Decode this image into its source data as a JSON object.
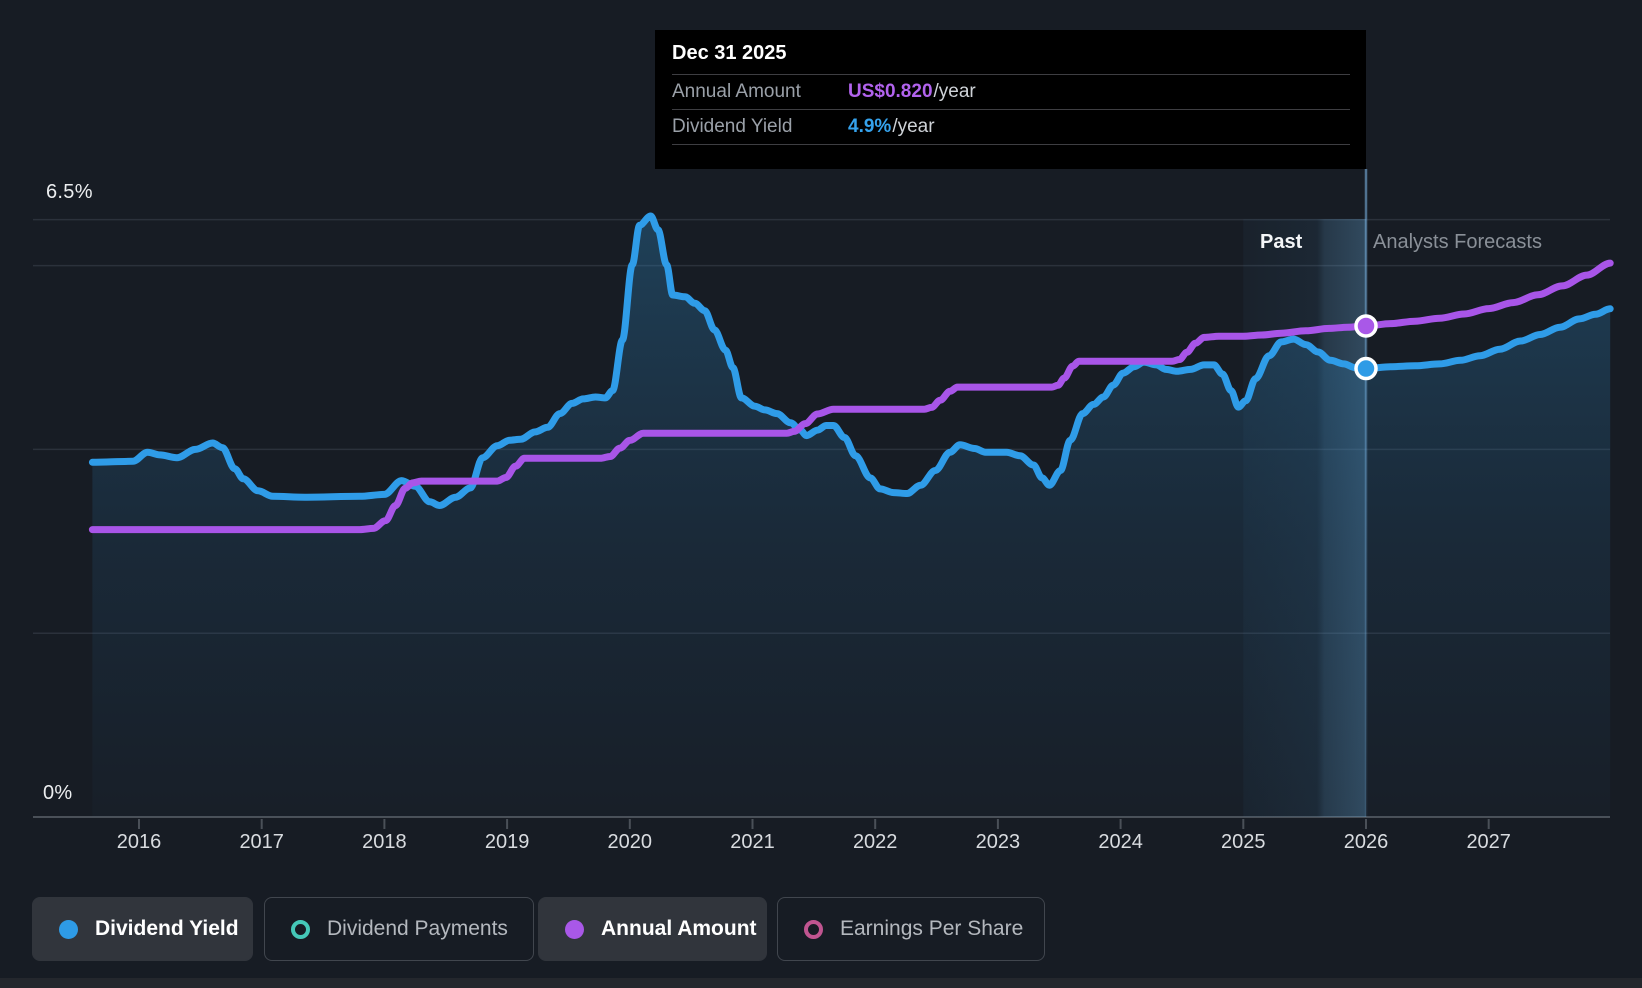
{
  "tooltip": {
    "title": "Dec 31 2025",
    "rows": [
      {
        "label": "Annual Amount",
        "value": "US$0.820",
        "suffix": "/year",
        "color": "#b263ee"
      },
      {
        "label": "Dividend Yield",
        "value": "4.9%",
        "suffix": "/year",
        "color": "#35a2ec"
      }
    ]
  },
  "header": {
    "past_label": "Past",
    "forecast_label": "Analysts Forecasts"
  },
  "y_axis": {
    "top_label": "6.5%",
    "bottom_label": "0%"
  },
  "x_axis": {
    "years": [
      "2016",
      "2017",
      "2018",
      "2019",
      "2020",
      "2021",
      "2022",
      "2023",
      "2024",
      "2025",
      "2026",
      "2027"
    ]
  },
  "legend": {
    "items": [
      {
        "label": "Dividend Yield",
        "color": "#2e9be6",
        "marker": "dot",
        "active": true
      },
      {
        "label": "Dividend Payments",
        "color": "#45c8b8",
        "marker": "ring",
        "active": false
      },
      {
        "label": "Annual Amount",
        "color": "#a958e8",
        "marker": "dot",
        "active": true
      },
      {
        "label": "Earnings Per Share",
        "color": "#c05590",
        "marker": "ring",
        "active": false
      }
    ]
  },
  "chart_data": {
    "type": "line",
    "title": "Dividend yield and annual dividend amount, past and analysts forecasts",
    "x_range": [
      2015.6,
      2028.0
    ],
    "grid": true,
    "y_gridlines_pct": [
      6.5,
      6.0,
      4.0,
      2.0,
      0.0
    ],
    "y_axis_pct_range": [
      0,
      6.5
    ],
    "divider_year": 2026,
    "highlight_band_years": [
      2025,
      2026
    ],
    "series": [
      {
        "name": "Dividend Yield",
        "unit": "%",
        "color": "#2f9ce8",
        "area": true,
        "points": [
          [
            2015.62,
            3.86
          ],
          [
            2015.95,
            3.87
          ],
          [
            2016.07,
            3.97
          ],
          [
            2016.17,
            3.94
          ],
          [
            2016.31,
            3.91
          ],
          [
            2016.46,
            4.0
          ],
          [
            2016.6,
            4.07
          ],
          [
            2016.68,
            4.02
          ],
          [
            2016.78,
            3.79
          ],
          [
            2016.85,
            3.68
          ],
          [
            2016.97,
            3.55
          ],
          [
            2017.09,
            3.49
          ],
          [
            2017.35,
            3.48
          ],
          [
            2017.8,
            3.49
          ],
          [
            2018.0,
            3.51
          ],
          [
            2018.14,
            3.66
          ],
          [
            2018.25,
            3.6
          ],
          [
            2018.37,
            3.43
          ],
          [
            2018.45,
            3.39
          ],
          [
            2018.58,
            3.48
          ],
          [
            2018.7,
            3.58
          ],
          [
            2018.8,
            3.91
          ],
          [
            2018.92,
            4.04
          ],
          [
            2019.02,
            4.1
          ],
          [
            2019.11,
            4.11
          ],
          [
            2019.23,
            4.19
          ],
          [
            2019.33,
            4.24
          ],
          [
            2019.43,
            4.39
          ],
          [
            2019.53,
            4.5
          ],
          [
            2019.62,
            4.55
          ],
          [
            2019.72,
            4.57
          ],
          [
            2019.8,
            4.56
          ],
          [
            2019.86,
            4.64
          ],
          [
            2019.94,
            5.19
          ],
          [
            2020.02,
            6.01
          ],
          [
            2020.08,
            6.44
          ],
          [
            2020.17,
            6.54
          ],
          [
            2020.23,
            6.39
          ],
          [
            2020.3,
            6.01
          ],
          [
            2020.35,
            5.68
          ],
          [
            2020.45,
            5.66
          ],
          [
            2020.53,
            5.59
          ],
          [
            2020.61,
            5.51
          ],
          [
            2020.69,
            5.3
          ],
          [
            2020.78,
            5.08
          ],
          [
            2020.84,
            4.89
          ],
          [
            2020.91,
            4.56
          ],
          [
            2021.02,
            4.47
          ],
          [
            2021.1,
            4.43
          ],
          [
            2021.2,
            4.39
          ],
          [
            2021.31,
            4.29
          ],
          [
            2021.39,
            4.21
          ],
          [
            2021.44,
            4.15
          ],
          [
            2021.53,
            4.21
          ],
          [
            2021.6,
            4.26
          ],
          [
            2021.66,
            4.26
          ],
          [
            2021.75,
            4.13
          ],
          [
            2021.84,
            3.93
          ],
          [
            2021.96,
            3.69
          ],
          [
            2022.04,
            3.57
          ],
          [
            2022.15,
            3.53
          ],
          [
            2022.26,
            3.52
          ],
          [
            2022.37,
            3.61
          ],
          [
            2022.49,
            3.77
          ],
          [
            2022.61,
            3.97
          ],
          [
            2022.69,
            4.05
          ],
          [
            2022.81,
            4.01
          ],
          [
            2022.9,
            3.97
          ],
          [
            2023.07,
            3.97
          ],
          [
            2023.18,
            3.93
          ],
          [
            2023.29,
            3.83
          ],
          [
            2023.36,
            3.69
          ],
          [
            2023.42,
            3.61
          ],
          [
            2023.51,
            3.77
          ],
          [
            2023.59,
            4.1
          ],
          [
            2023.69,
            4.39
          ],
          [
            2023.78,
            4.49
          ],
          [
            2023.86,
            4.57
          ],
          [
            2023.94,
            4.7
          ],
          [
            2024.02,
            4.83
          ],
          [
            2024.11,
            4.9
          ],
          [
            2024.19,
            4.95
          ],
          [
            2024.29,
            4.92
          ],
          [
            2024.37,
            4.87
          ],
          [
            2024.46,
            4.85
          ],
          [
            2024.57,
            4.87
          ],
          [
            2024.68,
            4.92
          ],
          [
            2024.76,
            4.92
          ],
          [
            2024.83,
            4.82
          ],
          [
            2024.9,
            4.64
          ],
          [
            2024.96,
            4.46
          ],
          [
            2025.02,
            4.53
          ],
          [
            2025.1,
            4.77
          ],
          [
            2025.21,
            5.02
          ],
          [
            2025.31,
            5.17
          ],
          [
            2025.41,
            5.2
          ],
          [
            2025.51,
            5.14
          ],
          [
            2025.61,
            5.06
          ],
          [
            2025.71,
            4.97
          ],
          [
            2025.82,
            4.93
          ],
          [
            2025.91,
            4.89
          ],
          [
            2026.0,
            4.88
          ],
          [
            2026.2,
            4.9
          ],
          [
            2026.4,
            4.91
          ],
          [
            2026.6,
            4.93
          ],
          [
            2026.77,
            4.97
          ],
          [
            2026.93,
            5.02
          ],
          [
            2027.09,
            5.09
          ],
          [
            2027.26,
            5.18
          ],
          [
            2027.42,
            5.25
          ],
          [
            2027.58,
            5.33
          ],
          [
            2027.74,
            5.42
          ],
          [
            2027.87,
            5.47
          ],
          [
            2027.99,
            5.53
          ]
        ]
      },
      {
        "name": "Annual Amount",
        "unit": "US$/year",
        "color": "#a855e8",
        "area": false,
        "points": [
          [
            2015.62,
            0.48
          ],
          [
            2017.8,
            0.48
          ],
          [
            2017.91,
            0.482
          ],
          [
            2018.01,
            0.495
          ],
          [
            2018.09,
            0.52
          ],
          [
            2018.17,
            0.549
          ],
          [
            2018.23,
            0.558
          ],
          [
            2018.3,
            0.561
          ],
          [
            2018.92,
            0.561
          ],
          [
            2018.99,
            0.567
          ],
          [
            2019.07,
            0.586
          ],
          [
            2019.14,
            0.599
          ],
          [
            2019.76,
            0.599
          ],
          [
            2019.84,
            0.602
          ],
          [
            2019.92,
            0.616
          ],
          [
            2020.0,
            0.629
          ],
          [
            2020.11,
            0.641
          ],
          [
            2021.28,
            0.641
          ],
          [
            2021.34,
            0.644
          ],
          [
            2021.43,
            0.657
          ],
          [
            2021.53,
            0.673
          ],
          [
            2021.66,
            0.681
          ],
          [
            2022.4,
            0.681
          ],
          [
            2022.46,
            0.684
          ],
          [
            2022.53,
            0.696
          ],
          [
            2022.61,
            0.711
          ],
          [
            2022.67,
            0.718
          ],
          [
            2023.44,
            0.718
          ],
          [
            2023.49,
            0.721
          ],
          [
            2023.54,
            0.733
          ],
          [
            2023.61,
            0.753
          ],
          [
            2023.66,
            0.761
          ],
          [
            2024.42,
            0.761
          ],
          [
            2024.48,
            0.764
          ],
          [
            2024.54,
            0.776
          ],
          [
            2024.61,
            0.791
          ],
          [
            2024.68,
            0.801
          ],
          [
            2024.8,
            0.803
          ],
          [
            2025.0,
            0.803
          ],
          [
            2025.15,
            0.805
          ],
          [
            2025.31,
            0.808
          ],
          [
            2025.51,
            0.812
          ],
          [
            2025.7,
            0.816
          ],
          [
            2025.85,
            0.818
          ],
          [
            2026.0,
            0.82
          ],
          [
            2026.2,
            0.824
          ],
          [
            2026.4,
            0.828
          ],
          [
            2026.6,
            0.833
          ],
          [
            2026.8,
            0.84
          ],
          [
            2027.0,
            0.849
          ],
          [
            2027.2,
            0.859
          ],
          [
            2027.4,
            0.872
          ],
          [
            2027.6,
            0.887
          ],
          [
            2027.8,
            0.905
          ],
          [
            2027.99,
            0.925
          ]
        ]
      }
    ],
    "markers": [
      {
        "series": "Dividend Yield",
        "x": 2026.0,
        "value": 4.88,
        "color": "#2e9be6"
      },
      {
        "series": "Annual Amount",
        "x": 2026.0,
        "value": 0.82,
        "color": "#a958e8"
      }
    ]
  }
}
